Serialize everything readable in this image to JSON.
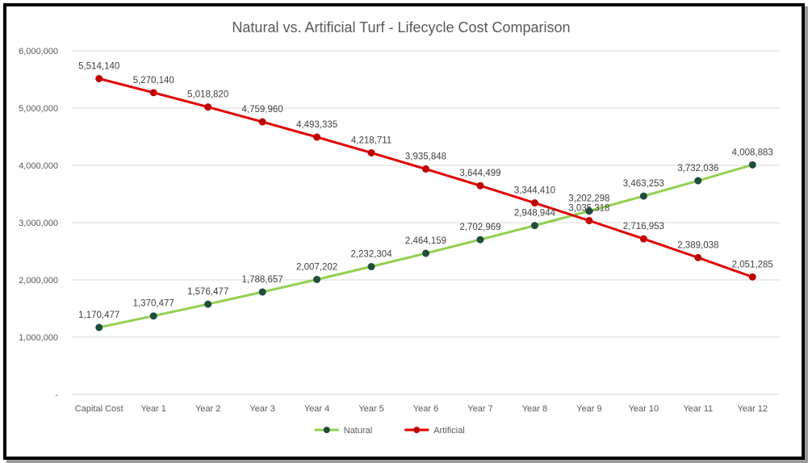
{
  "chart_data": {
    "type": "line",
    "title": "Natural vs. Artificial Turf - Lifecycle Cost Comparison",
    "xlabel": "",
    "ylabel": "",
    "categories": [
      "Capital Cost",
      "Year 1",
      "Year 2",
      "Year 3",
      "Year 4",
      "Year 5",
      "Year 6",
      "Year 7",
      "Year 8",
      "Year 9",
      "Year 10",
      "Year 11",
      "Year 12"
    ],
    "ylim": [
      0,
      6000000
    ],
    "y_ticks": [
      "-",
      "1,000,000",
      "2,000,000",
      "3,000,000",
      "4,000,000",
      "5,000,000",
      "6,000,000"
    ],
    "grid": true,
    "legend_position": "bottom",
    "series": [
      {
        "name": "Natural",
        "color": "#92D050",
        "marker_color": "#1F4E3D",
        "values": [
          1170477,
          1370477,
          1576477,
          1788657,
          2007202,
          2232304,
          2464159,
          2702969,
          2948944,
          3202298,
          3463253,
          3732036,
          4008883
        ],
        "labels": [
          "1,170,477",
          "1,370,477",
          "1,576,477",
          "1,788,657",
          "2,007,202",
          "2,232,304",
          "2,464,159",
          "2,702,969",
          "2,948,944",
          "3,202,298",
          "3,463,253",
          "3,732,036",
          "4,008,883"
        ]
      },
      {
        "name": "Artificial",
        "color": "#E00000",
        "marker_color": "#C00000",
        "values": [
          5514140,
          5270140,
          5018820,
          4759960,
          4493335,
          4218711,
          3935848,
          3644499,
          3344410,
          3035318,
          2716953,
          2389038,
          2051285
        ],
        "labels": [
          "5,514,140",
          "5,270,140",
          "5,018,820",
          "4,759,960",
          "4,493,335",
          "4,218,711",
          "3,935,848",
          "3,644,499",
          "3,344,410",
          "3,035,318",
          "2,716,953",
          "2,389,038",
          "2,051,285"
        ]
      }
    ]
  }
}
